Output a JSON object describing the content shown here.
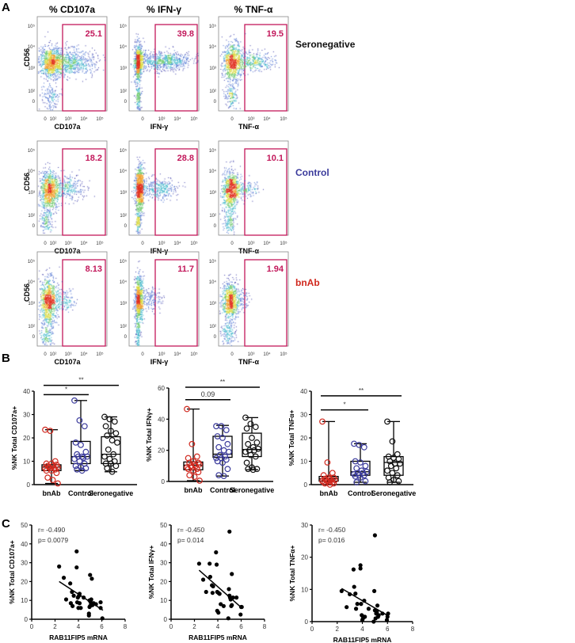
{
  "panel_labels": {
    "a": "A",
    "b": "B",
    "c": "C"
  },
  "flow": {
    "ylabel": "CD56",
    "gate_color": "#c2185b",
    "y_ticks": [
      "10⁵",
      "10⁴",
      "10³",
      "10²",
      "0"
    ],
    "x_ticks_first": [
      "0",
      "10²",
      "10³",
      "10⁴",
      "10⁵"
    ],
    "x_ticks_other": [
      "0",
      "10³",
      "10⁴",
      "10⁵"
    ],
    "columns": [
      {
        "title": "% CD107a",
        "xlabel": "CD107a"
      },
      {
        "title": "% IFN-γ",
        "xlabel": "IFN-γ"
      },
      {
        "title": "% TNF-α",
        "xlabel": "TNF-α"
      }
    ],
    "rows": [
      {
        "label": "Seronegative",
        "color": "#111111",
        "gates": [
          "25.1",
          "39.8",
          "19.5"
        ]
      },
      {
        "label": "Control",
        "color": "#3b3b9c",
        "gates": [
          "18.2",
          "28.8",
          "10.1"
        ]
      },
      {
        "label": "bnAb",
        "color": "#d0281e",
        "gates": [
          "8.13",
          "11.7",
          "1.94"
        ]
      }
    ]
  },
  "chart_data": [
    {
      "type": "box",
      "panel": "B",
      "ylabel": "%NK Total CD107a+",
      "ylim": [
        0,
        40
      ],
      "yticks": [
        "0",
        "10",
        "20",
        "30",
        "40"
      ],
      "categories": [
        "bnAb",
        "Control",
        "Seronegative"
      ],
      "colors": [
        "#d0281e",
        "#3b3b9c",
        "#111111"
      ],
      "boxes": [
        {
          "min": 0.5,
          "q1": 6,
          "median": 7.5,
          "q3": 8.5,
          "max": 23.5
        },
        {
          "min": 6,
          "q1": 9,
          "median": 12,
          "q3": 18.5,
          "max": 36
        },
        {
          "min": 5.5,
          "q1": 9,
          "median": 13,
          "q3": 20.5,
          "max": 29
        }
      ],
      "points": [
        [
          23.5,
          23,
          10,
          9,
          9,
          8.5,
          8,
          8,
          7.5,
          7.5,
          7,
          7,
          7,
          6.5,
          6,
          6,
          5,
          3,
          2,
          0.5
        ],
        [
          36,
          27.5,
          25,
          18,
          17,
          14,
          13,
          12,
          12,
          12,
          11.5,
          11,
          10,
          9,
          8,
          7.5,
          7,
          6.5,
          6
        ],
        [
          29,
          28,
          27,
          25,
          23,
          22,
          21,
          19,
          18,
          15,
          13,
          12,
          11,
          10,
          9,
          9,
          8,
          7,
          5.5
        ]
      ],
      "significance": [
        {
          "from": 0,
          "to": 2,
          "label": "**",
          "y": 42.5
        },
        {
          "from": 0,
          "to": 1,
          "label": "*",
          "y": 38.5
        }
      ]
    },
    {
      "type": "box",
      "panel": "B",
      "ylabel": "%NK Total IFNγ+",
      "ylim": [
        0,
        60
      ],
      "yticks": [
        "0",
        "20",
        "40",
        "60"
      ],
      "categories": [
        "bnAb",
        "Control",
        "Seronegative"
      ],
      "colors": [
        "#d0281e",
        "#3b3b9c",
        "#111111"
      ],
      "boxes": [
        {
          "min": 0.5,
          "q1": 7.5,
          "median": 10.5,
          "q3": 12.5,
          "max": 46.5
        },
        {
          "min": 3.5,
          "q1": 15.5,
          "median": 17.5,
          "q3": 29,
          "max": 36
        },
        {
          "min": 7.5,
          "q1": 16,
          "median": 20.5,
          "q3": 31,
          "max": 41
        }
      ],
      "points": [
        [
          46.5,
          24,
          16,
          15,
          13,
          12,
          12,
          11,
          11,
          10,
          10,
          9,
          9,
          8,
          8,
          7,
          6,
          4,
          3,
          0.5
        ],
        [
          35.5,
          35.5,
          33,
          29,
          28,
          24,
          22,
          20,
          19,
          17,
          16,
          15,
          15,
          14,
          13,
          12,
          8,
          4,
          3.5
        ],
        [
          41,
          37,
          35,
          34,
          28,
          25,
          24,
          22,
          21,
          20,
          20,
          19,
          17,
          16,
          12,
          9,
          8,
          8,
          7.5
        ]
      ],
      "significance": [
        {
          "from": 0,
          "to": 2,
          "label": "**",
          "y": 60.5
        },
        {
          "from": 0,
          "to": 1,
          "label": "0.09",
          "y": 52.5
        }
      ]
    },
    {
      "type": "box",
      "panel": "B",
      "ylabel": "%NK Total  TNFα+",
      "ylim": [
        0,
        40
      ],
      "yticks": [
        "0",
        "10",
        "20",
        "30",
        "40"
      ],
      "categories": [
        "bnAb",
        "Control",
        "Seronegative"
      ],
      "colors": [
        "#d0281e",
        "#3b3b9c",
        "#111111"
      ],
      "boxes": [
        {
          "min": 0,
          "q1": 1.5,
          "median": 2.5,
          "q3": 3.5,
          "max": 27
        },
        {
          "min": 1,
          "q1": 4,
          "median": 5.5,
          "q3": 10,
          "max": 17.5
        },
        {
          "min": 1,
          "q1": 4,
          "median": 9.5,
          "q3": 12,
          "max": 27
        }
      ],
      "points": [
        [
          27,
          9.5,
          5,
          4,
          3,
          3,
          2.5,
          2.5,
          2,
          2,
          2,
          1.5,
          1.5,
          1,
          1,
          1,
          0.5,
          0.5,
          0
        ],
        [
          17.5,
          17,
          16,
          10,
          9.5,
          8,
          7,
          6,
          5.5,
          5,
          5,
          4.5,
          4,
          4,
          3.5,
          3,
          1.5,
          1
        ],
        [
          27,
          18.5,
          13,
          12,
          11.5,
          11,
          10,
          9,
          9,
          8,
          7,
          6,
          5,
          4,
          3,
          2,
          1.5,
          1
        ]
      ],
      "significance": [
        {
          "from": 0,
          "to": 2,
          "label": "**",
          "y": 38
        },
        {
          "from": 0,
          "to": 1,
          "label": "*",
          "y": 32
        }
      ]
    },
    {
      "type": "scatter",
      "panel": "C",
      "xlabel": "RAB11FIP5 mRNA",
      "ylabel": "%NK Total CD107a+",
      "xlim": [
        0,
        8
      ],
      "ylim": [
        0,
        50
      ],
      "xticks": [
        "0",
        "2",
        "4",
        "6",
        "8"
      ],
      "yticks": [
        "0",
        "10",
        "20",
        "30",
        "40",
        "50"
      ],
      "r_text": "r= -0.490",
      "p_text": "p= 0.0079",
      "fit": [
        [
          2.35,
          20
        ],
        [
          6.1,
          4.8
        ]
      ],
      "points": [
        [
          2.35,
          28
        ],
        [
          2.75,
          22
        ],
        [
          2.95,
          10.5
        ],
        [
          3.3,
          19
        ],
        [
          3.35,
          8.5
        ],
        [
          3.45,
          14.5
        ],
        [
          3.5,
          7
        ],
        [
          3.6,
          12.5
        ],
        [
          3.85,
          36
        ],
        [
          3.85,
          27.5
        ],
        [
          3.9,
          9
        ],
        [
          3.95,
          11.5
        ],
        [
          4.0,
          6
        ],
        [
          4.05,
          12.5
        ],
        [
          4.1,
          13.5
        ],
        [
          4.1,
          8.5
        ],
        [
          4.2,
          6
        ],
        [
          4.45,
          11.5
        ],
        [
          4.9,
          2
        ],
        [
          4.9,
          3
        ],
        [
          4.95,
          6.5
        ],
        [
          4.95,
          10
        ],
        [
          5.0,
          23.5
        ],
        [
          5.0,
          7
        ],
        [
          5.05,
          9
        ],
        [
          5.1,
          8
        ],
        [
          5.15,
          21.5
        ],
        [
          5.1,
          10.5
        ],
        [
          5.2,
          7.5
        ],
        [
          5.3,
          8.5
        ],
        [
          5.5,
          8
        ],
        [
          5.9,
          9
        ],
        [
          5.9,
          6
        ],
        [
          6.05,
          0.5
        ]
      ]
    },
    {
      "type": "scatter",
      "panel": "C",
      "xlabel": "RAB11FIP5 mRNA",
      "ylabel": "%NK Total IFNγ+",
      "xlim": [
        0,
        8
      ],
      "ylim": [
        0,
        50
      ],
      "xticks": [
        "0",
        "2",
        "4",
        "6",
        "8"
      ],
      "yticks": [
        "0",
        "10",
        "20",
        "30",
        "40",
        "50"
      ],
      "r_text": "r= -0.450",
      "p_text": "p= 0.014",
      "fit": [
        [
          2.4,
          26
        ],
        [
          6.05,
          6
        ]
      ],
      "points": [
        [
          2.4,
          29.5
        ],
        [
          2.75,
          21
        ],
        [
          3.0,
          14.5
        ],
        [
          3.3,
          29.5
        ],
        [
          3.35,
          22.5
        ],
        [
          3.5,
          18
        ],
        [
          3.55,
          14
        ],
        [
          3.6,
          17.5
        ],
        [
          3.85,
          35.5
        ],
        [
          3.9,
          29
        ],
        [
          3.95,
          14.5
        ],
        [
          3.95,
          4.5
        ],
        [
          4.05,
          3.5
        ],
        [
          4.05,
          14
        ],
        [
          4.15,
          13.5
        ],
        [
          4.25,
          8
        ],
        [
          4.5,
          7
        ],
        [
          4.9,
          0.5
        ],
        [
          4.95,
          16
        ],
        [
          5.0,
          46.5
        ],
        [
          5.0,
          12.5
        ],
        [
          5.05,
          11.5
        ],
        [
          5.1,
          10.5
        ],
        [
          5.15,
          7
        ],
        [
          5.2,
          24
        ],
        [
          5.2,
          7.5
        ],
        [
          5.3,
          11.5
        ],
        [
          5.6,
          11.5
        ],
        [
          5.95,
          2.5
        ],
        [
          6.0,
          6.5
        ],
        [
          6.05,
          6.5
        ]
      ]
    },
    {
      "type": "scatter",
      "panel": "C",
      "xlabel": "RAB11FIP5 mRNA",
      "ylabel": "%NK Total  TNFα+",
      "xlim": [
        0,
        8
      ],
      "ylim": [
        0,
        30
      ],
      "xticks": [
        "0",
        "2",
        "4",
        "6",
        "8"
      ],
      "yticks": [
        "0",
        "10",
        "20",
        "30"
      ],
      "r_text": "r= -0.450",
      "p_text": "p= 0.016",
      "fit": [
        [
          2.35,
          10.3
        ],
        [
          6.05,
          1.8
        ]
      ],
      "points": [
        [
          2.35,
          9.5
        ],
        [
          2.75,
          4.5
        ],
        [
          3.0,
          8.5
        ],
        [
          3.3,
          16.2
        ],
        [
          3.35,
          10.8
        ],
        [
          3.45,
          8.7
        ],
        [
          3.5,
          4
        ],
        [
          3.6,
          5.5
        ],
        [
          3.85,
          17.5
        ],
        [
          3.85,
          16.5
        ],
        [
          3.9,
          5.5
        ],
        [
          3.95,
          2
        ],
        [
          4.0,
          0.5
        ],
        [
          4.05,
          1
        ],
        [
          4.1,
          1.5
        ],
        [
          4.15,
          6.5
        ],
        [
          4.2,
          1.5
        ],
        [
          4.5,
          4
        ],
        [
          4.9,
          0
        ],
        [
          4.95,
          9.5
        ],
        [
          5.0,
          26.8
        ],
        [
          5.0,
          3.5
        ],
        [
          5.05,
          1
        ],
        [
          5.1,
          2.5
        ],
        [
          5.15,
          3
        ],
        [
          5.2,
          5
        ],
        [
          5.25,
          1.5
        ],
        [
          5.3,
          2
        ],
        [
          5.6,
          2.5
        ],
        [
          5.95,
          0.5
        ],
        [
          6.0,
          1.5
        ],
        [
          6.05,
          2.5
        ]
      ]
    }
  ]
}
